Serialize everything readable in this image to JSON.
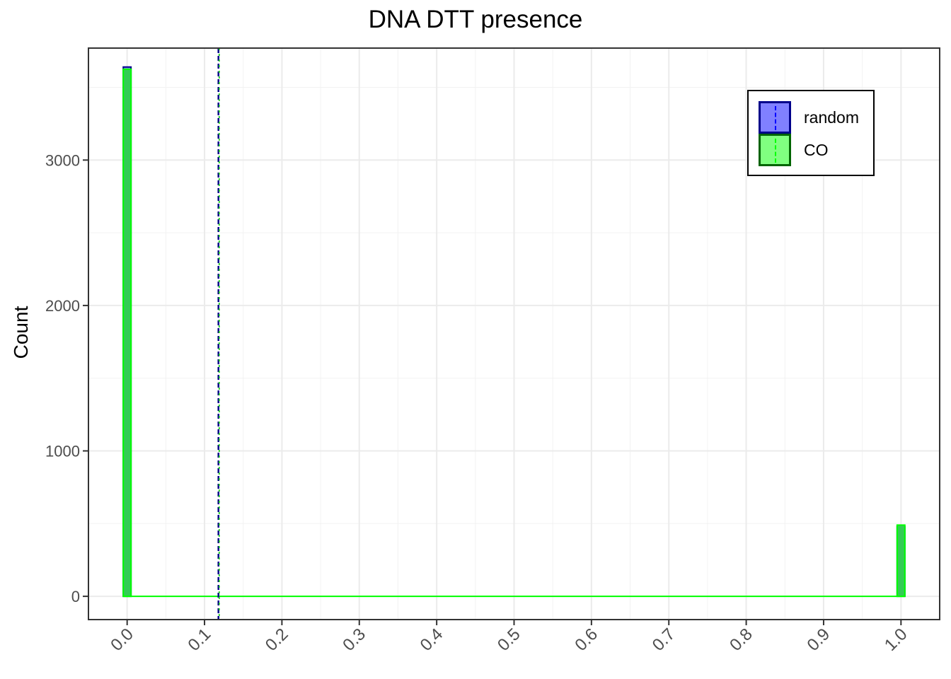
{
  "chart_data": {
    "type": "bar",
    "title": "DNA DTT presence",
    "xlabel": "",
    "ylabel": "Count",
    "xlim": [
      -0.05,
      1.05
    ],
    "ylim": [
      -160,
      3770
    ],
    "x_ticks": [
      "0.0",
      "0.1",
      "0.2",
      "0.3",
      "0.4",
      "0.5",
      "0.6",
      "0.7",
      "0.8",
      "0.9",
      "1.0"
    ],
    "y_ticks": [
      "0",
      "1000",
      "2000",
      "3000"
    ],
    "bin_width": 0.01,
    "series": [
      {
        "name": "random",
        "color": "#0000ff",
        "fill": "#8080ff",
        "x": [
          0.0,
          1.0
        ],
        "values": [
          3640,
          480
        ],
        "mean": 0.118
      },
      {
        "name": "CO",
        "color": "#00ff00",
        "fill": "#33cc55",
        "x": [
          0.0,
          1.0
        ],
        "values": [
          3625,
          490
        ],
        "mean": 0.119
      }
    ],
    "grid": true,
    "legend_position": "top-right"
  }
}
